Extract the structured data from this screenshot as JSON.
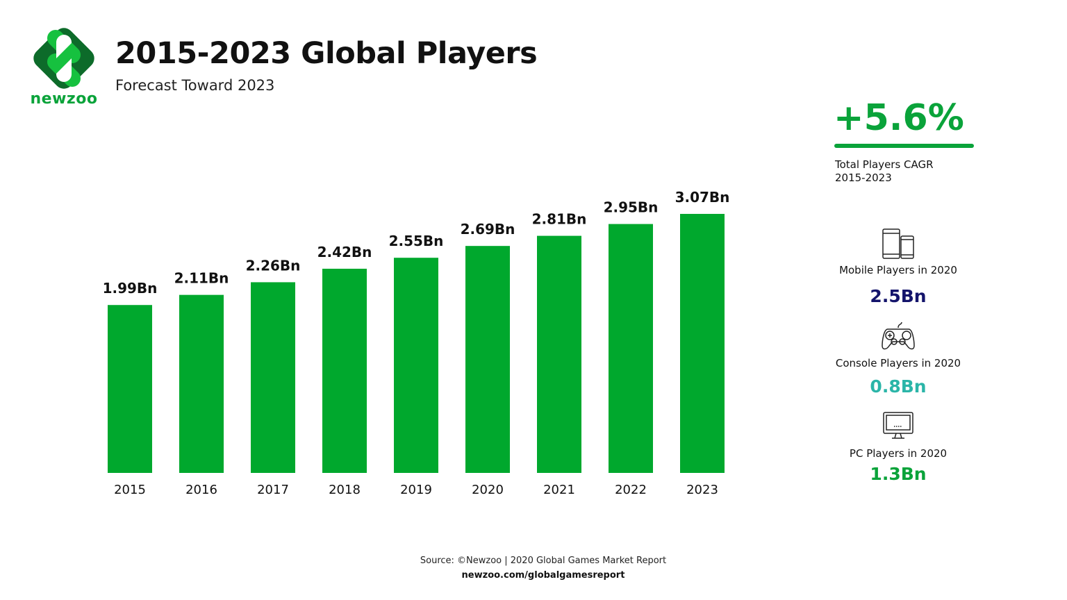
{
  "brand": {
    "name": "newzoo",
    "colors": {
      "primary": "#0aa33a",
      "dark": "#0d6b2a",
      "light": "#16c13f"
    }
  },
  "header": {
    "title": "2015-2023 Global Players",
    "subtitle": "Forecast Toward 2023"
  },
  "chart_data": {
    "type": "bar",
    "categories": [
      "2015",
      "2016",
      "2017",
      "2018",
      "2019",
      "2020",
      "2021",
      "2022",
      "2023"
    ],
    "values": [
      1.99,
      2.11,
      2.26,
      2.42,
      2.55,
      2.69,
      2.81,
      2.95,
      3.07
    ],
    "data_labels": [
      "1.99Bn",
      "2.11Bn",
      "2.26Bn",
      "2.42Bn",
      "2.55Bn",
      "2.69Bn",
      "2.81Bn",
      "2.95Bn",
      "3.07Bn"
    ],
    "unit": "Bn",
    "ylim": [
      0,
      3.07
    ],
    "grid": false,
    "bar_color": "#00a82d"
  },
  "cagr": {
    "value": "+5.6%",
    "label_line1": "Total Players CAGR",
    "label_line2": "2015-2023"
  },
  "stats": [
    {
      "icon": "mobile-devices-icon",
      "label": "Mobile Players in 2020",
      "value": "2.5Bn",
      "color": "#14146b"
    },
    {
      "icon": "gamepad-icon",
      "label": "Console Players in 2020",
      "value": "0.8Bn",
      "color": "#2bb5a8"
    },
    {
      "icon": "monitor-icon",
      "label": "PC Players in 2020",
      "value": "1.3Bn",
      "color": "#0aa33a"
    }
  ],
  "footer": {
    "source": "Source: ©Newzoo | 2020 Global Games Market Report",
    "url": "newzoo.com/globalgamesreport"
  }
}
